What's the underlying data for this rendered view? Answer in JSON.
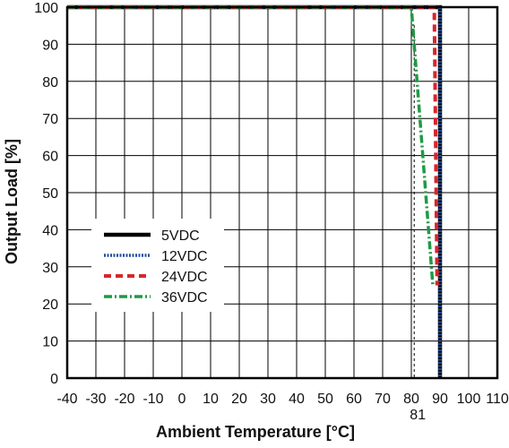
{
  "chart_data": {
    "type": "line",
    "xlabel": "Ambient Temperature [°C]",
    "ylabel": "Output Load [%]",
    "xlim": [
      -40,
      110
    ],
    "ylim": [
      0,
      100
    ],
    "x_ticks": [
      "-40",
      "-30",
      "-20",
      "-10",
      "0",
      "10",
      "20",
      "30",
      "40",
      "50",
      "60",
      "70",
      "80",
      "90",
      "100",
      "110"
    ],
    "y_ticks": [
      "0",
      "10",
      "20",
      "30",
      "40",
      "50",
      "60",
      "70",
      "80",
      "90",
      "100"
    ],
    "grid": true,
    "legend_position": "center-left",
    "annotations": [
      {
        "text": "81",
        "x": 81,
        "note": "dashed reference line"
      }
    ],
    "series": [
      {
        "name": "5VDC",
        "style": "solid",
        "color": "#000000",
        "x": [
          -40,
          90,
          90
        ],
        "y": [
          100,
          100,
          0
        ]
      },
      {
        "name": "12VDC",
        "style": "dotted",
        "color": "#1f4e9e",
        "x": [
          -40,
          90,
          90
        ],
        "y": [
          100,
          100,
          0
        ]
      },
      {
        "name": "24VDC",
        "style": "dashed",
        "color": "#d7262b",
        "x": [
          -40,
          88,
          89
        ],
        "y": [
          100,
          100,
          25
        ]
      },
      {
        "name": "36VDC",
        "style": "dashdot",
        "color": "#1f9a45",
        "x": [
          -40,
          80,
          87.5
        ],
        "y": [
          100,
          100,
          25
        ]
      }
    ]
  }
}
